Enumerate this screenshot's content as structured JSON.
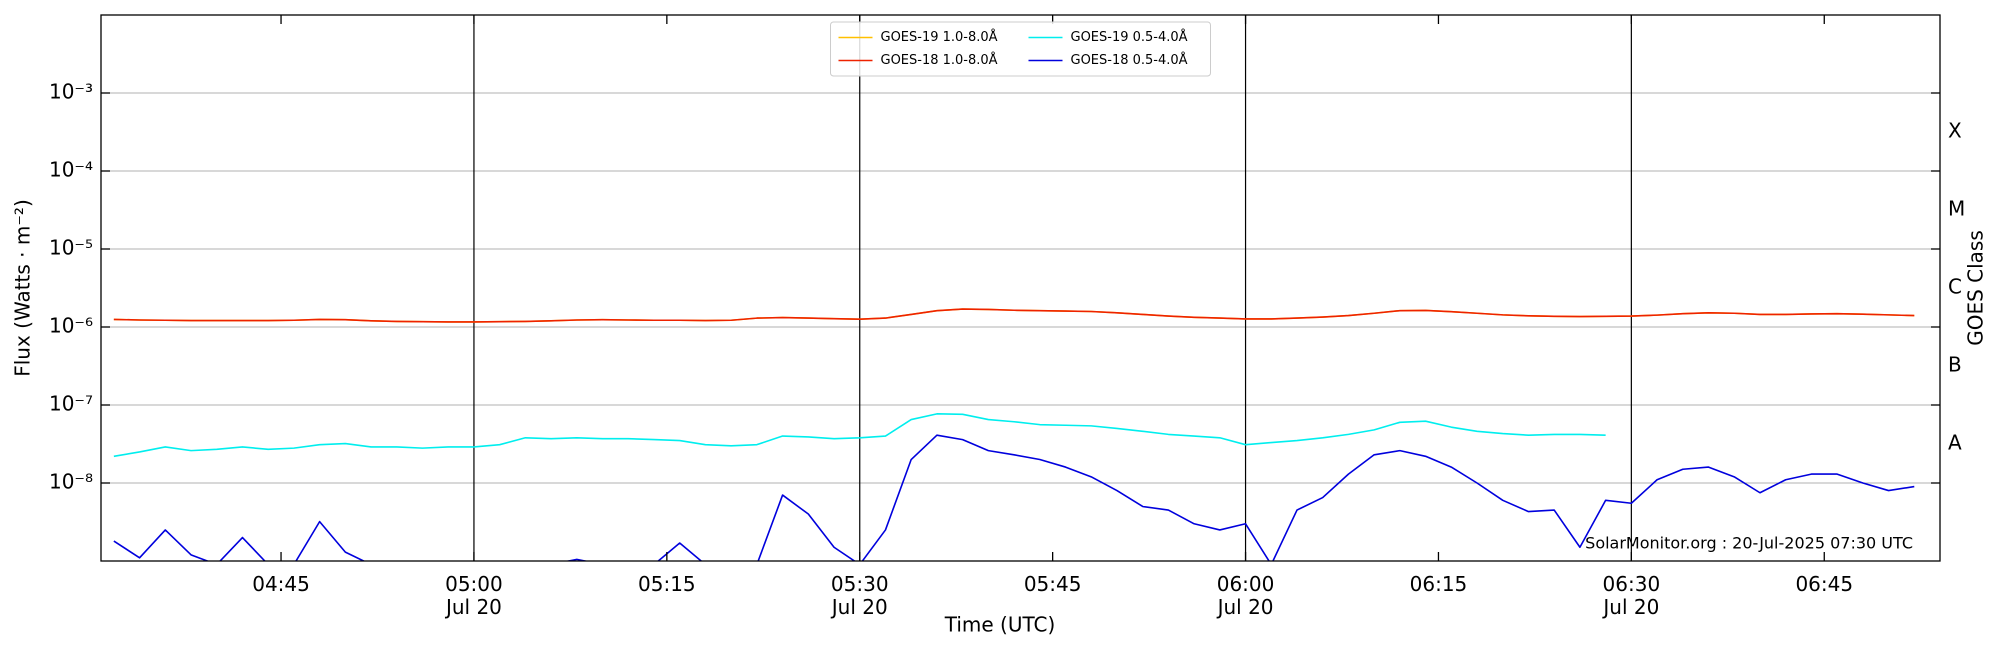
{
  "chart_data": {
    "type": "line",
    "y_label": "Flux (Watts · m⁻²)",
    "x_label": "Time (UTC)",
    "y2_label": "GOES Class",
    "annotation": "SolarMonitor.org : 20-Jul-2025 07:30 UTC",
    "log_y": true,
    "grid": true,
    "xgrid": true,
    "legend": "upper center",
    "xlim": [
      "04:31",
      "06:54"
    ],
    "ylim": [
      1e-09,
      0.01
    ],
    "y2lim": [
      1e-09,
      0.01
    ],
    "xticks": [
      {
        "value": "04:45",
        "label": "04:45"
      },
      {
        "value": "05:00",
        "label": "05:00",
        "date_label": "Jul 20"
      },
      {
        "value": "05:15",
        "label": "05:15"
      },
      {
        "value": "05:30",
        "label": "05:30",
        "date_label": "Jul 20"
      },
      {
        "value": "05:45",
        "label": "05:45"
      },
      {
        "value": "06:00",
        "label": "06:00",
        "date_label": "Jul 20"
      },
      {
        "value": "06:15",
        "label": "06:15"
      },
      {
        "value": "06:30",
        "label": "06:30",
        "date_label": "Jul 20"
      },
      {
        "value": "06:45",
        "label": "06:45"
      }
    ],
    "yticks": [
      {
        "value": 1e-08,
        "label": "10⁻⁸"
      },
      {
        "value": 1e-07,
        "label": "10⁻⁷"
      },
      {
        "value": 1e-06,
        "label": "10⁻⁶"
      },
      {
        "value": 1e-05,
        "label": "10⁻⁵"
      },
      {
        "value": 0.0001,
        "label": "10⁻⁴"
      },
      {
        "value": 0.001,
        "label": "10⁻³"
      }
    ],
    "y2ticks": [
      {
        "value": 3.162e-08,
        "label": "A"
      },
      {
        "value": 3.162e-07,
        "label": "B"
      },
      {
        "value": 3.162e-06,
        "label": "C"
      },
      {
        "value": 3.162e-05,
        "label": "M"
      },
      {
        "value": 0.0003162,
        "label": "X"
      }
    ],
    "x": [
      "04:32",
      "04:34",
      "04:36",
      "04:38",
      "04:40",
      "04:42",
      "04:44",
      "04:46",
      "04:48",
      "04:50",
      "04:52",
      "04:54",
      "04:56",
      "04:58",
      "05:00",
      "05:02",
      "05:04",
      "05:06",
      "05:08",
      "05:10",
      "05:12",
      "05:14",
      "05:16",
      "05:18",
      "05:20",
      "05:22",
      "05:24",
      "05:26",
      "05:28",
      "05:30",
      "05:32",
      "05:34",
      "05:36",
      "05:38",
      "05:40",
      "05:42",
      "05:44",
      "05:46",
      "05:48",
      "05:50",
      "05:52",
      "05:54",
      "05:56",
      "05:58",
      "06:00",
      "06:02",
      "06:04",
      "06:06",
      "06:08",
      "06:10",
      "06:12",
      "06:14",
      "06:16",
      "06:18",
      "06:20",
      "06:22",
      "06:24",
      "06:26",
      "06:28",
      "06:30",
      "06:32",
      "06:34",
      "06:36",
      "06:38",
      "06:40",
      "06:42",
      "06:44",
      "06:46",
      "06:48",
      "06:50",
      "06:52"
    ],
    "series": [
      {
        "name": "GOES-19 1.0-8.0Å",
        "color": "#ffc000",
        "values": [
          1.25e-06,
          1.23e-06,
          1.22e-06,
          1.21e-06,
          1.21e-06,
          1.21e-06,
          1.21e-06,
          1.22e-06,
          1.25e-06,
          1.24e-06,
          1.2e-06,
          1.18e-06,
          1.17e-06,
          1.16e-06,
          1.16e-06,
          1.17e-06,
          1.18e-06,
          1.2e-06,
          1.23e-06,
          1.24e-06,
          1.23e-06,
          1.22e-06,
          1.22e-06,
          1.21e-06,
          1.22e-06,
          1.3e-06,
          1.32e-06,
          1.3e-06,
          1.28e-06,
          1.26e-06,
          1.3e-06,
          1.45e-06,
          1.62e-06,
          1.7e-06,
          1.68e-06,
          1.64e-06,
          1.62e-06,
          1.6e-06,
          1.58e-06,
          1.52e-06,
          1.45e-06,
          1.38e-06,
          1.33e-06,
          1.3e-06,
          1.27e-06,
          1.27e-06,
          1.3e-06,
          1.34e-06,
          1.4e-06,
          1.5e-06,
          1.62e-06,
          1.63e-06,
          1.57e-06,
          1.5e-06,
          1.43e-06,
          1.39e-06,
          1.37e-06,
          1.36e-06,
          1.37e-06,
          1.38e-06,
          1.42e-06,
          1.48e-06,
          1.52e-06,
          1.5e-06,
          1.45e-06,
          1.45e-06,
          1.47e-06,
          1.48e-06,
          1.46e-06,
          1.43e-06,
          1.4e-06
        ]
      },
      {
        "name": "GOES-18 1.0-8.0Å",
        "color": "#ee2200",
        "values": [
          1.25e-06,
          1.23e-06,
          1.22e-06,
          1.21e-06,
          1.21e-06,
          1.21e-06,
          1.21e-06,
          1.22e-06,
          1.25e-06,
          1.24e-06,
          1.2e-06,
          1.18e-06,
          1.17e-06,
          1.16e-06,
          1.16e-06,
          1.17e-06,
          1.18e-06,
          1.2e-06,
          1.23e-06,
          1.24e-06,
          1.23e-06,
          1.22e-06,
          1.22e-06,
          1.21e-06,
          1.22e-06,
          1.3e-06,
          1.32e-06,
          1.3e-06,
          1.28e-06,
          1.26e-06,
          1.3e-06,
          1.45e-06,
          1.62e-06,
          1.7e-06,
          1.68e-06,
          1.64e-06,
          1.62e-06,
          1.6e-06,
          1.58e-06,
          1.52e-06,
          1.45e-06,
          1.38e-06,
          1.33e-06,
          1.3e-06,
          1.27e-06,
          1.27e-06,
          1.3e-06,
          1.34e-06,
          1.4e-06,
          1.5e-06,
          1.62e-06,
          1.63e-06,
          1.57e-06,
          1.5e-06,
          1.43e-06,
          1.39e-06,
          1.37e-06,
          1.36e-06,
          1.37e-06,
          1.38e-06,
          1.42e-06,
          1.48e-06,
          1.52e-06,
          1.5e-06,
          1.45e-06,
          1.45e-06,
          1.47e-06,
          1.48e-06,
          1.46e-06,
          1.43e-06,
          1.4e-06
        ]
      },
      {
        "name": "GOES-19 0.5-4.0Å",
        "color": "#00eeee",
        "values": [
          2.2e-08,
          2.5e-08,
          2.9e-08,
          2.6e-08,
          2.7e-08,
          2.9e-08,
          2.7e-08,
          2.8e-08,
          3.1e-08,
          3.2e-08,
          2.9e-08,
          2.9e-08,
          2.8e-08,
          2.9e-08,
          2.9e-08,
          3.1e-08,
          3.8e-08,
          3.7e-08,
          3.8e-08,
          3.7e-08,
          3.7e-08,
          3.6e-08,
          3.5e-08,
          3.1e-08,
          3e-08,
          3.1e-08,
          4e-08,
          3.9e-08,
          3.7e-08,
          3.8e-08,
          4e-08,
          6.5e-08,
          7.7e-08,
          7.6e-08,
          6.5e-08,
          6.1e-08,
          5.6e-08,
          5.5e-08,
          5.4e-08,
          5e-08,
          4.6e-08,
          4.2e-08,
          4e-08,
          3.8e-08,
          3.1e-08,
          3.3e-08,
          3.5e-08,
          3.8e-08,
          4.2e-08,
          4.8e-08,
          6e-08,
          6.2e-08,
          5.2e-08,
          4.6e-08,
          4.3e-08,
          4.1e-08,
          4.2e-08,
          4.2e-08,
          4.1e-08,
          null,
          null,
          null,
          null,
          null,
          null,
          null,
          null,
          null,
          null,
          null,
          null
        ]
      },
      {
        "name": "GOES-18 0.5-4.0Å",
        "color": "#0000dd",
        "values": [
          1.8e-09,
          1.1e-09,
          2.5e-09,
          1.2e-09,
          9e-10,
          2e-09,
          9e-10,
          9e-10,
          3.2e-09,
          1.3e-09,
          9e-10,
          9e-10,
          9e-10,
          9e-10,
          9e-10,
          9e-10,
          9e-10,
          9e-10,
          1.05e-09,
          9e-10,
          9e-10,
          9e-10,
          1.7e-09,
          9e-10,
          9e-10,
          9e-10,
          7e-09,
          4e-09,
          1.5e-09,
          9e-10,
          2.5e-09,
          2e-08,
          4.1e-08,
          3.6e-08,
          2.6e-08,
          2.3e-08,
          2e-08,
          1.6e-08,
          1.2e-08,
          8e-09,
          5e-09,
          4.5e-09,
          3e-09,
          2.5e-09,
          3e-09,
          9e-10,
          4.5e-09,
          6.5e-09,
          1.3e-08,
          2.3e-08,
          2.6e-08,
          2.2e-08,
          1.6e-08,
          1e-08,
          6e-09,
          4.3e-09,
          4.5e-09,
          1.5e-09,
          6e-09,
          5.5e-09,
          1.1e-08,
          1.5e-08,
          1.6e-08,
          1.2e-08,
          7.5e-09,
          1.1e-08,
          1.3e-08,
          1.3e-08,
          1e-08,
          8e-09,
          9e-09
        ]
      }
    ]
  }
}
